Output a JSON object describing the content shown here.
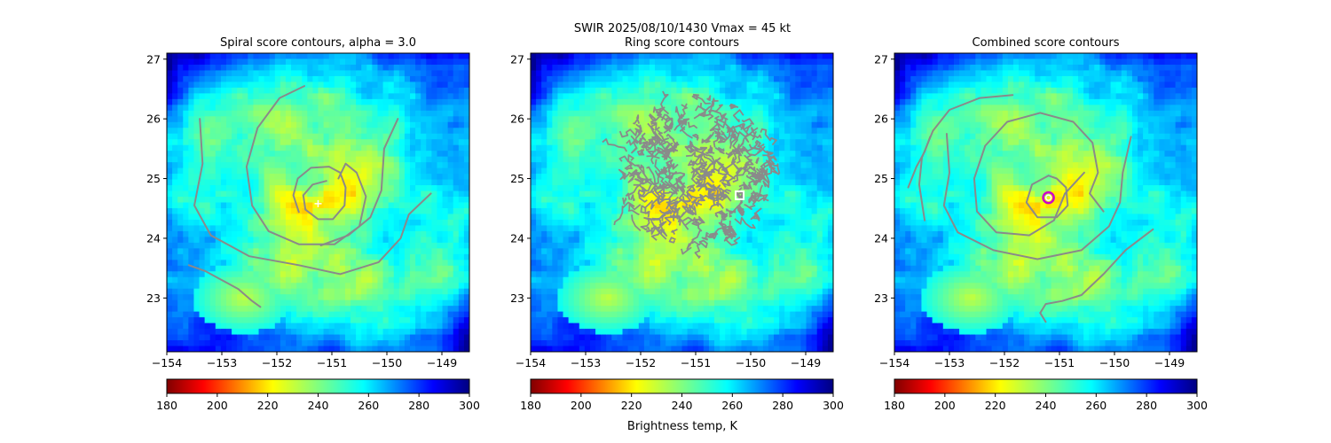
{
  "figure": {
    "suptitle_line1": "SWIR  2025/08/10/1430    Vmax = 45 kt"
  },
  "colors": {
    "contour": "#8a8a8a",
    "cmap_note": "jet_r",
    "marker_spiral": "#ffffff",
    "marker_ring": "#ffffff",
    "marker_combined_outer": "#cc00cc",
    "marker_combined_inner": "#ffffff"
  },
  "colorbar": {
    "ticks": [
      180,
      200,
      220,
      240,
      260,
      280,
      300
    ],
    "range": [
      180,
      300
    ],
    "label": "Brightness temp, K"
  },
  "chart_data": [
    {
      "type": "heatmap",
      "title": "Spiral score contours, alpha =  3.0",
      "xlabel": "",
      "ylabel": "",
      "xlim": [
        -154.0,
        -148.5
      ],
      "ylim": [
        22.1,
        27.1
      ],
      "xticks": [
        -154,
        -153,
        -152,
        -151,
        -150,
        -149
      ],
      "yticks": [
        23,
        24,
        25,
        26,
        27
      ],
      "center": {
        "lon": -151.25,
        "lat": 24.58
      },
      "marker": {
        "shape": "plus",
        "lon": -151.25,
        "lat": 24.58
      },
      "contours": [
        [
          [
            -151.1,
            24.96
          ],
          [
            -151.35,
            24.9
          ],
          [
            -151.52,
            24.72
          ],
          [
            -151.48,
            24.48
          ],
          [
            -151.25,
            24.32
          ],
          [
            -150.98,
            24.32
          ],
          [
            -150.77,
            24.55
          ],
          [
            -150.75,
            24.85
          ],
          [
            -150.85,
            25.1
          ],
          [
            -151.05,
            25.2
          ],
          [
            -151.38,
            25.18
          ],
          [
            -151.62,
            25.0
          ],
          [
            -151.7,
            24.72
          ],
          [
            -151.6,
            24.44
          ]
        ],
        [
          [
            -151.5,
            26.55
          ],
          [
            -151.95,
            26.35
          ],
          [
            -152.35,
            25.85
          ],
          [
            -152.55,
            25.2
          ],
          [
            -152.45,
            24.55
          ],
          [
            -152.15,
            24.12
          ],
          [
            -151.6,
            23.9
          ],
          [
            -150.95,
            23.9
          ],
          [
            -150.5,
            24.2
          ],
          [
            -150.38,
            24.7
          ],
          [
            -150.55,
            25.1
          ],
          [
            -150.75,
            25.25
          ],
          [
            -150.88,
            25.0
          ]
        ],
        [
          [
            -153.4,
            26.0
          ],
          [
            -153.35,
            25.25
          ],
          [
            -153.5,
            24.55
          ],
          [
            -153.2,
            24.05
          ],
          [
            -152.5,
            23.7
          ],
          [
            -151.6,
            23.55
          ],
          [
            -150.85,
            23.4
          ],
          [
            -150.15,
            23.6
          ],
          [
            -149.75,
            24.0
          ],
          [
            -149.6,
            24.4
          ],
          [
            -149.2,
            24.75
          ]
        ],
        [
          [
            -149.8,
            26.0
          ],
          [
            -150.05,
            25.5
          ],
          [
            -150.1,
            24.8
          ],
          [
            -150.3,
            24.35
          ],
          [
            -150.7,
            24.05
          ],
          [
            -151.2,
            23.88
          ]
        ],
        [
          [
            -153.6,
            23.55
          ],
          [
            -153.3,
            23.45
          ],
          [
            -153.0,
            23.3
          ],
          [
            -152.7,
            23.15
          ],
          [
            -152.45,
            22.95
          ],
          [
            -152.3,
            22.85
          ]
        ]
      ]
    },
    {
      "type": "heatmap",
      "title": "Ring score contours",
      "xlabel": "",
      "ylabel": "",
      "xlim": [
        -154.0,
        -148.5
      ],
      "ylim": [
        22.1,
        27.1
      ],
      "xticks": [
        -154,
        -153,
        -152,
        -151,
        -150,
        -149
      ],
      "yticks": [
        23,
        24,
        25,
        26,
        27
      ],
      "center": {
        "lon": -151.25,
        "lat": 24.58
      },
      "ring_region": {
        "lon": -151.0,
        "lat": 25.1,
        "radius_deg": 1.45
      },
      "marker": {
        "shape": "square",
        "lon": -150.2,
        "lat": 24.72
      }
    },
    {
      "type": "heatmap",
      "title": "Combined score contours",
      "xlabel": "",
      "ylabel": "",
      "xlim": [
        -154.0,
        -148.5
      ],
      "ylim": [
        22.1,
        27.1
      ],
      "xticks": [
        -154,
        -153,
        -152,
        -151,
        -150,
        -149
      ],
      "yticks": [
        23,
        24,
        25,
        26,
        27
      ],
      "center": {
        "lon": -151.25,
        "lat": 24.58
      },
      "marker": {
        "shape": "circle",
        "lon": -151.2,
        "lat": 24.68
      },
      "contours": [
        [
          [
            -151.2,
            25.05
          ],
          [
            -151.5,
            24.9
          ],
          [
            -151.6,
            24.6
          ],
          [
            -151.4,
            24.35
          ],
          [
            -151.05,
            24.35
          ],
          [
            -150.85,
            24.55
          ],
          [
            -150.88,
            24.85
          ],
          [
            -151.05,
            25.0
          ],
          [
            -151.2,
            25.05
          ]
        ],
        [
          [
            -150.55,
            25.1
          ],
          [
            -150.9,
            24.75
          ],
          [
            -151.1,
            24.3
          ],
          [
            -151.55,
            24.05
          ],
          [
            -152.15,
            24.1
          ],
          [
            -152.5,
            24.45
          ],
          [
            -152.55,
            25.0
          ],
          [
            -152.35,
            25.55
          ],
          [
            -151.95,
            25.95
          ],
          [
            -151.35,
            26.1
          ],
          [
            -150.75,
            25.95
          ],
          [
            -150.4,
            25.6
          ],
          [
            -150.3,
            25.1
          ],
          [
            -150.45,
            24.75
          ],
          [
            -150.2,
            24.45
          ]
        ],
        [
          [
            -153.45,
            24.3
          ],
          [
            -153.55,
            24.9
          ],
          [
            -153.5,
            25.35
          ],
          [
            -153.3,
            25.8
          ],
          [
            -153.0,
            26.15
          ],
          [
            -152.45,
            26.35
          ],
          [
            -151.85,
            26.4
          ]
        ],
        [
          [
            -153.05,
            25.75
          ],
          [
            -153.0,
            25.1
          ],
          [
            -153.1,
            24.55
          ],
          [
            -152.85,
            24.1
          ],
          [
            -152.2,
            23.8
          ],
          [
            -151.4,
            23.65
          ],
          [
            -150.6,
            23.8
          ],
          [
            -150.1,
            24.2
          ],
          [
            -149.9,
            24.6
          ],
          [
            -149.85,
            25.1
          ],
          [
            -149.7,
            25.7
          ]
        ],
        [
          [
            -153.75,
            24.85
          ],
          [
            -153.6,
            25.2
          ],
          [
            -153.45,
            25.45
          ],
          [
            -153.35,
            25.7
          ]
        ],
        [
          [
            -149.3,
            24.15
          ],
          [
            -149.8,
            23.8
          ],
          [
            -150.2,
            23.4
          ],
          [
            -150.6,
            23.05
          ],
          [
            -150.95,
            22.95
          ],
          [
            -151.25,
            22.9
          ],
          [
            -151.35,
            22.75
          ],
          [
            -151.25,
            22.6
          ]
        ]
      ]
    }
  ]
}
